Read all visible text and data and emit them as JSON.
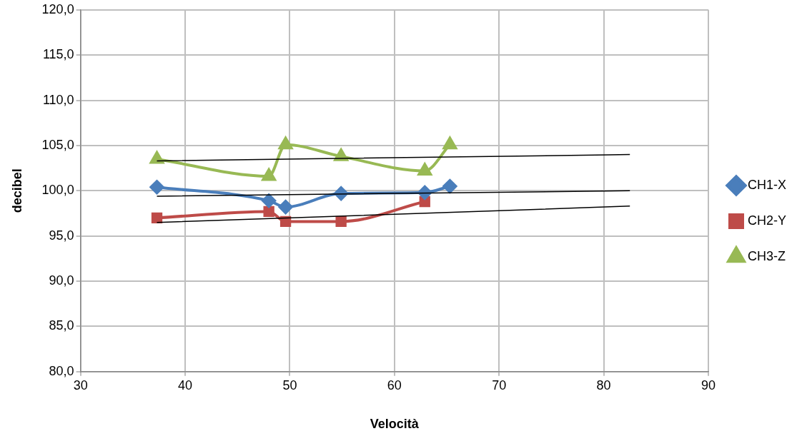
{
  "chart_data": {
    "type": "line",
    "xlabel": "Velocità",
    "ylabel": "decibel",
    "xlim": [
      30,
      90
    ],
    "xticks": [
      30,
      40,
      50,
      60,
      70,
      80,
      90
    ],
    "ylim": [
      80,
      120
    ],
    "yticks": [
      {
        "value": 80,
        "label": "80,0"
      },
      {
        "value": 85,
        "label": "85,0"
      },
      {
        "value": 90,
        "label": "90,0"
      },
      {
        "value": 95,
        "label": "95,0"
      },
      {
        "value": 100,
        "label": "100,0"
      },
      {
        "value": 105,
        "label": "105,0"
      },
      {
        "value": 110,
        "label": "110,0"
      },
      {
        "value": 115,
        "label": "115,0"
      },
      {
        "value": 120,
        "label": "120,0"
      }
    ],
    "grid": true,
    "legend": "right",
    "series": [
      {
        "name": "CH1-X",
        "color": "#4a7ebb",
        "marker": "diamond",
        "x": [
          37.3,
          48.0,
          49.6,
          54.9,
          62.9,
          65.3
        ],
        "values": [
          100.4,
          98.9,
          98.2,
          99.7,
          99.8,
          100.5
        ]
      },
      {
        "name": "CH2-Y",
        "color": "#be4b48",
        "marker": "square",
        "x": [
          37.3,
          48.0,
          49.6,
          54.9,
          62.9
        ],
        "values": [
          97.0,
          97.7,
          96.6,
          96.6,
          98.8
        ]
      },
      {
        "name": "CH3-Z",
        "color": "#98b954",
        "marker": "triangle",
        "x": [
          37.3,
          48.0,
          49.6,
          54.9,
          62.9,
          65.3
        ],
        "values": [
          103.5,
          101.6,
          105.1,
          103.8,
          102.2,
          105.1
        ]
      },
      {
        "color": "#000000",
        "marker": "none",
        "x": [
          37.3,
          82.5
        ],
        "values": [
          99.4,
          100.0
        ]
      },
      {
        "color": "#000000",
        "marker": "none",
        "x": [
          37.3,
          82.5
        ],
        "values": [
          96.5,
          98.3
        ]
      },
      {
        "color": "#000000",
        "marker": "none",
        "x": [
          37.3,
          82.5
        ],
        "values": [
          103.3,
          104.0
        ]
      }
    ]
  }
}
